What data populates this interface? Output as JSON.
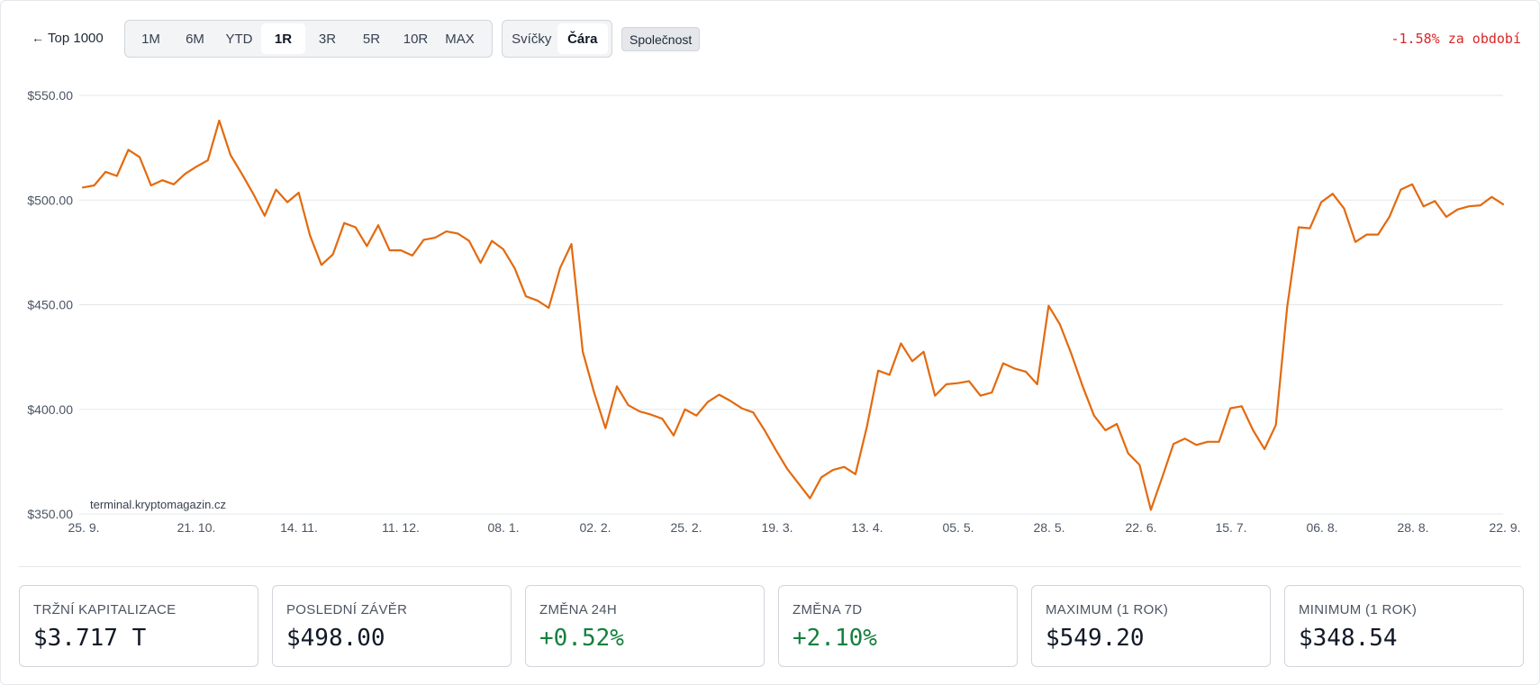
{
  "toolbar": {
    "back_label": "Top 1000",
    "ranges": [
      "1M",
      "6M",
      "YTD",
      "1R",
      "3R",
      "5R",
      "10R",
      "MAX"
    ],
    "active_range": "1R",
    "chart_types": [
      "Svíčky",
      "Čára"
    ],
    "active_type": "Čára",
    "company_label": "Společnost",
    "period_change": "-1.58% za období"
  },
  "colors": {
    "line": "#e36a0e",
    "negative": "#dc2626",
    "positive": "#15803d"
  },
  "chart_data": {
    "type": "line",
    "watermark": "terminal.kryptomagazin.cz",
    "y_ticks": [
      "$550.00",
      "$500.00",
      "$450.00",
      "$400.00",
      "$350.00"
    ],
    "ylim": [
      350,
      550
    ],
    "x_ticks": [
      "25. 9.",
      "21. 10.",
      "14. 11.",
      "11. 12.",
      "08. 1.",
      "02. 2.",
      "25. 2.",
      "19. 3.",
      "13. 4.",
      "05. 5.",
      "28. 5.",
      "22. 6.",
      "15. 7.",
      "06. 8.",
      "28. 8.",
      "22. 9."
    ],
    "grid": true,
    "series": [
      {
        "values": [
          506,
          507,
          513.5,
          511.5,
          524,
          520.5,
          507,
          509.5,
          507.5,
          512.5,
          516,
          519,
          538,
          521.5,
          512.5,
          503,
          492.5,
          505,
          499,
          503.5,
          483,
          469,
          474,
          489,
          487,
          478,
          488,
          476,
          476,
          473.5,
          481,
          482,
          485,
          484,
          480.5,
          470,
          480.5,
          476.5,
          467.5,
          454,
          452,
          448.5,
          467.5,
          479,
          427.5,
          408,
          391,
          411,
          402,
          399,
          397.5,
          395.5,
          387.5,
          400,
          397,
          403.5,
          407,
          404,
          400.5,
          398.5,
          390,
          380.5,
          371.5,
          364.5,
          357.5,
          367.5,
          371,
          372.5,
          369,
          391.5,
          418.5,
          416.5,
          431.5,
          423,
          427.5,
          406.5,
          412,
          412.5,
          413.5,
          406.5,
          408,
          422,
          419.5,
          418,
          412,
          449.5,
          440.5,
          426.5,
          411,
          397,
          390,
          393,
          379,
          373.5,
          352,
          367.5,
          383.5,
          386,
          383,
          384.5,
          384.5,
          400.5,
          401.5,
          390,
          381,
          392.5,
          449,
          487,
          486.5,
          499,
          503,
          496,
          480,
          483.5,
          483.5,
          492,
          505,
          507.5,
          497,
          499.5,
          492,
          495.5,
          497,
          497.5,
          501.5,
          498
        ]
      }
    ]
  },
  "stats": [
    {
      "label": "TRŽNÍ KAPITALIZACE",
      "value": "$3.717 T",
      "tone": "neutral"
    },
    {
      "label": "POSLEDNÍ ZÁVĚR",
      "value": "$498.00",
      "tone": "neutral"
    },
    {
      "label": "ZMĚNA 24H",
      "value": "+0.52%",
      "tone": "positive"
    },
    {
      "label": "ZMĚNA 7D",
      "value": "+2.10%",
      "tone": "positive"
    },
    {
      "label": "MAXIMUM (1 ROK)",
      "value": "$549.20",
      "tone": "neutral"
    },
    {
      "label": "MINIMUM (1 ROK)",
      "value": "$348.54",
      "tone": "neutral"
    }
  ]
}
